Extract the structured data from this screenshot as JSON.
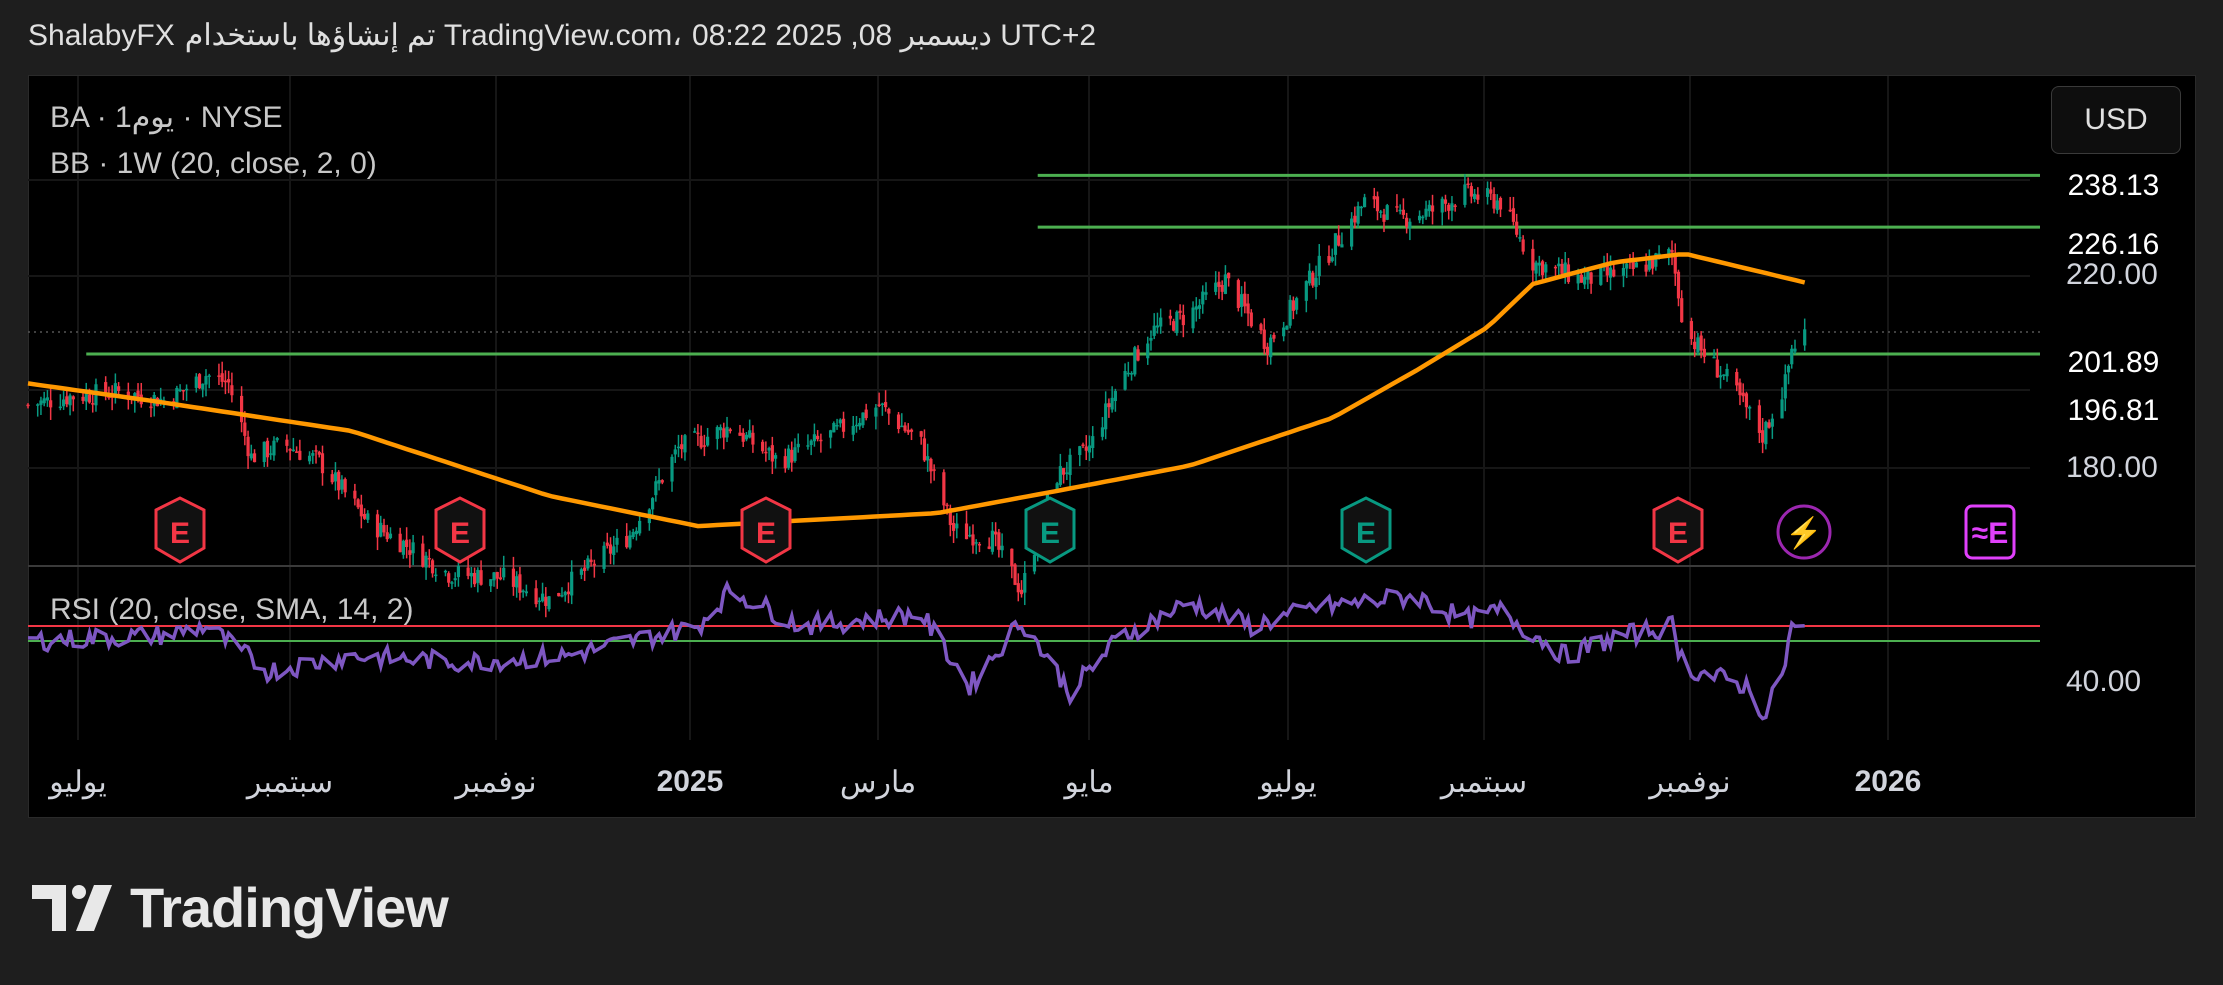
{
  "header": {
    "author": "ShalabyFX",
    "credit": "تم إنشاؤها باستخدام TradingView.com،",
    "timestamp": "08:22 2025 ,08 ديسمبر UTC+2"
  },
  "legend": {
    "symbol_line": "BA · 1يوم · NYSE",
    "indicator_line": "BB · 1W (20, close, 2, 0)",
    "rsi_line": "RSI (20, close, SMA, 14, 2)"
  },
  "currency_button": "USD",
  "price_axis": {
    "ticks": [
      "220.00",
      "180.00"
    ],
    "rsi_tick": "40.00",
    "tags": [
      {
        "label": "238.13",
        "color": "#4caf50"
      },
      {
        "label": "226.16",
        "color": "#4caf50"
      },
      {
        "label": "201.89",
        "color": "#089981"
      },
      {
        "label": "196.81",
        "color": "#4caf50"
      }
    ]
  },
  "time_axis": {
    "ticks": [
      {
        "label": "يوليو",
        "bold": false
      },
      {
        "label": "سبتمبر",
        "bold": false
      },
      {
        "label": "نوفمبر",
        "bold": false
      },
      {
        "label": "2025",
        "bold": true
      },
      {
        "label": "مارس",
        "bold": false
      },
      {
        "label": "مايو",
        "bold": false
      },
      {
        "label": "يوليو",
        "bold": false
      },
      {
        "label": "سبتمبر",
        "bold": false
      },
      {
        "label": "نوفمبر",
        "bold": false
      },
      {
        "label": "2026",
        "bold": true
      }
    ]
  },
  "events": [
    {
      "type": "earnings",
      "label": "E",
      "color": "#f23645"
    },
    {
      "type": "earnings",
      "label": "E",
      "color": "#f23645"
    },
    {
      "type": "earnings",
      "label": "E",
      "color": "#f23645"
    },
    {
      "type": "earnings",
      "label": "E",
      "color": "#089981"
    },
    {
      "type": "earnings",
      "label": "E",
      "color": "#089981"
    },
    {
      "type": "earnings",
      "label": "E",
      "color": "#f23645"
    },
    {
      "type": "dividend",
      "label": "⚡",
      "color": "#9c27b0"
    },
    {
      "type": "upcoming-earnings",
      "label": "≈E",
      "color": "#e040fb"
    }
  ],
  "colors": {
    "up": "#089981",
    "down": "#f23645",
    "bb_basis": "#ff9800",
    "hline": "#4caf50",
    "rsi": "#7e57c2",
    "rsi_upper": "#f23645",
    "rsi_lower": "#4caf50"
  },
  "brand": "TradingView",
  "chart_data": {
    "type": "candlestick",
    "symbol": "BA",
    "exchange": "NYSE",
    "y_range": [
      148,
      244
    ],
    "x_range": [
      "2024-06-07",
      "2026-02-15"
    ],
    "last_price": 201.89,
    "horizontal_levels": [
      238.13,
      226.16,
      196.81
    ],
    "close_anchors": [
      [
        "2024-06-07",
        185
      ],
      [
        "2024-06-20",
        187
      ],
      [
        "2024-07-05",
        188
      ],
      [
        "2024-07-20",
        186
      ],
      [
        "2024-08-01",
        192
      ],
      [
        "2024-08-08",
        190
      ],
      [
        "2024-08-15",
        173
      ],
      [
        "2024-08-25",
        176
      ],
      [
        "2024-09-05",
        172
      ],
      [
        "2024-09-20",
        158
      ],
      [
        "2024-10-01",
        153
      ],
      [
        "2024-10-15",
        146
      ],
      [
        "2024-11-01",
        145
      ],
      [
        "2024-11-15",
        140
      ],
      [
        "2024-12-10",
        155
      ],
      [
        "2024-12-25",
        175
      ],
      [
        "2025-01-10",
        180
      ],
      [
        "2025-01-25",
        172
      ],
      [
        "2025-02-10",
        178
      ],
      [
        "2025-02-25",
        185
      ],
      [
        "2025-03-10",
        176
      ],
      [
        "2025-03-20",
        156
      ],
      [
        "2025-04-01",
        154
      ],
      [
        "2025-04-10",
        142
      ],
      [
        "2025-04-20",
        168
      ],
      [
        "2025-05-01",
        175
      ],
      [
        "2025-05-10",
        190
      ],
      [
        "2025-05-20",
        202
      ],
      [
        "2025-06-01",
        206
      ],
      [
        "2025-06-12",
        214
      ],
      [
        "2025-06-25",
        199
      ],
      [
        "2025-07-10",
        216
      ],
      [
        "2025-07-25",
        232
      ],
      [
        "2025-08-05",
        228
      ],
      [
        "2025-08-15",
        230
      ],
      [
        "2025-08-25",
        234
      ],
      [
        "2025-09-05",
        232
      ],
      [
        "2025-09-15",
        218
      ],
      [
        "2025-10-01",
        214
      ],
      [
        "2025-10-15",
        216
      ],
      [
        "2025-10-28",
        220
      ],
      [
        "2025-11-01",
        202
      ],
      [
        "2025-11-15",
        190
      ],
      [
        "2025-11-25",
        178
      ],
      [
        "2025-12-02",
        190
      ],
      [
        "2025-12-04",
        198
      ],
      [
        "2025-12-08",
        201.89
      ]
    ],
    "bb_basis": [
      [
        "2024-06-07",
        190
      ],
      [
        "2024-07-15",
        186
      ],
      [
        "2024-09-15",
        179
      ],
      [
        "2024-11-15",
        164
      ],
      [
        "2024-12-31",
        157
      ],
      [
        "2025-03-15",
        160
      ],
      [
        "2025-04-20",
        165
      ],
      [
        "2025-06-01",
        171
      ],
      [
        "2025-07-15",
        182
      ],
      [
        "2025-08-10",
        193
      ],
      [
        "2025-09-01",
        203
      ],
      [
        "2025-09-15",
        213
      ],
      [
        "2025-10-10",
        218
      ],
      [
        "2025-11-01",
        220
      ],
      [
        "2025-12-10",
        213
      ]
    ],
    "rsi": {
      "upper_band": 60,
      "lower_band": 55,
      "y_range": [
        22,
        80
      ],
      "anchors": [
        [
          "2024-06-07",
          55
        ],
        [
          "2024-07-20",
          57
        ],
        [
          "2024-08-01",
          60
        ],
        [
          "2024-08-20",
          45
        ],
        [
          "2024-09-15",
          50
        ],
        [
          "2024-10-20",
          48
        ],
        [
          "2024-11-20",
          50
        ],
        [
          "2024-12-31",
          60
        ],
        [
          "2025-01-10",
          72
        ],
        [
          "2025-02-01",
          60
        ],
        [
          "2025-03-10",
          64
        ],
        [
          "2025-03-25",
          40
        ],
        [
          "2025-04-10",
          62
        ],
        [
          "2025-04-25",
          38
        ],
        [
          "2025-05-10",
          56
        ],
        [
          "2025-06-01",
          68
        ],
        [
          "2025-06-20",
          60
        ],
        [
          "2025-07-10",
          66
        ],
        [
          "2025-08-10",
          70
        ],
        [
          "2025-08-25",
          62
        ],
        [
          "2025-09-05",
          65
        ],
        [
          "2025-09-25",
          50
        ],
        [
          "2025-10-10",
          56
        ],
        [
          "2025-10-28",
          60
        ],
        [
          "2025-11-01",
          46
        ],
        [
          "2025-11-20",
          40
        ],
        [
          "2025-11-26",
          30
        ],
        [
          "2025-12-02",
          48
        ],
        [
          "2025-12-04",
          60
        ],
        [
          "2025-12-08",
          58
        ]
      ]
    }
  }
}
